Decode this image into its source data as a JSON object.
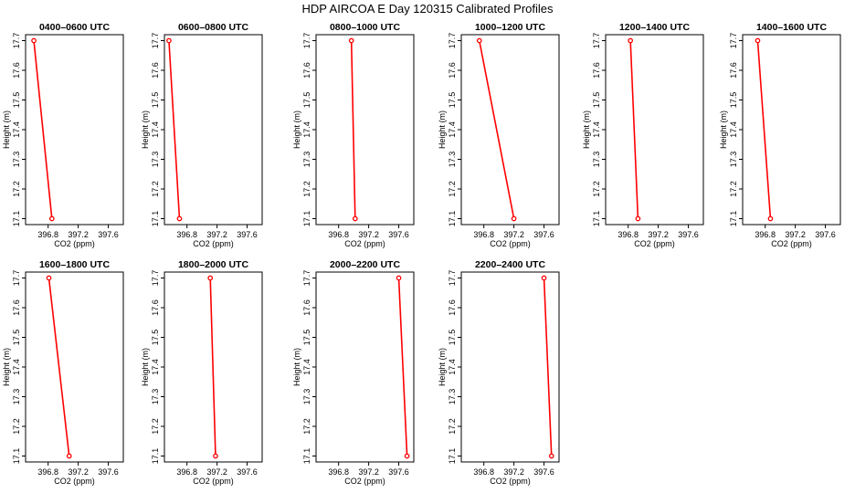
{
  "figure": {
    "title": "HDP AIRCOA E  Day 120315  Calibrated Profiles"
  },
  "style": {
    "line_color": "#ff0000",
    "point_color": "#ff0000",
    "axis_color": "#000000"
  },
  "chart_data": [
    {
      "type": "line",
      "title": "0400–0600 UTC",
      "xlabel": "CO2 (ppm)",
      "ylabel": "Height (m)",
      "xlim": [
        396.5,
        397.8
      ],
      "ylim": [
        17.08,
        17.72
      ],
      "xticks": [
        "396.8",
        "397.2",
        "397.6"
      ],
      "yticks": [
        "17.1",
        "17.2",
        "17.3",
        "17.4",
        "17.5",
        "17.6",
        "17.7"
      ],
      "series": [
        {
          "x": [
            396.61,
            396.85
          ],
          "y": [
            17.7,
            17.1
          ]
        }
      ]
    },
    {
      "type": "line",
      "title": "0600–0800 UTC",
      "xlabel": "CO2 (ppm)",
      "ylabel": "Height (m)",
      "xlim": [
        396.5,
        397.8
      ],
      "ylim": [
        17.08,
        17.72
      ],
      "xticks": [
        "396.8",
        "397.2",
        "397.6"
      ],
      "yticks": [
        "17.1",
        "17.2",
        "17.3",
        "17.4",
        "17.5",
        "17.6",
        "17.7"
      ],
      "series": [
        {
          "x": [
            396.56,
            396.7
          ],
          "y": [
            17.7,
            17.1
          ]
        }
      ]
    },
    {
      "type": "line",
      "title": "0800–1000 UTC",
      "xlabel": "CO2 (ppm)",
      "ylabel": "Height (m)",
      "xlim": [
        396.5,
        397.8
      ],
      "ylim": [
        17.08,
        17.72
      ],
      "xticks": [
        "396.8",
        "397.2",
        "397.6"
      ],
      "yticks": [
        "17.1",
        "17.2",
        "17.3",
        "17.4",
        "17.5",
        "17.6",
        "17.7"
      ],
      "series": [
        {
          "x": [
            396.97,
            397.02
          ],
          "y": [
            17.7,
            17.1
          ]
        }
      ]
    },
    {
      "type": "line",
      "title": "1000–1200 UTC",
      "xlabel": "CO2 (ppm)",
      "ylabel": "Height (m)",
      "xlim": [
        396.5,
        397.8
      ],
      "ylim": [
        17.08,
        17.72
      ],
      "xticks": [
        "396.8",
        "397.2",
        "397.6"
      ],
      "yticks": [
        "17.1",
        "17.2",
        "17.3",
        "17.4",
        "17.5",
        "17.6",
        "17.7"
      ],
      "series": [
        {
          "x": [
            396.74,
            397.2
          ],
          "y": [
            17.7,
            17.1
          ]
        }
      ]
    },
    {
      "type": "line",
      "title": "1200–1400 UTC",
      "xlabel": "CO2 (ppm)",
      "ylabel": "Height (m)",
      "xlim": [
        396.5,
        397.8
      ],
      "ylim": [
        17.08,
        17.72
      ],
      "xticks": [
        "396.8",
        "397.2",
        "397.6"
      ],
      "yticks": [
        "17.1",
        "17.2",
        "17.3",
        "17.4",
        "17.5",
        "17.6",
        "17.7"
      ],
      "series": [
        {
          "x": [
            396.83,
            396.93
          ],
          "y": [
            17.7,
            17.1
          ]
        }
      ]
    },
    {
      "type": "line",
      "title": "1400–1600 UTC",
      "xlabel": "CO2 (ppm)",
      "ylabel": "Height (m)",
      "xlim": [
        396.5,
        397.8
      ],
      "ylim": [
        17.08,
        17.72
      ],
      "xticks": [
        "396.8",
        "397.2",
        "397.6"
      ],
      "yticks": [
        "17.1",
        "17.2",
        "17.3",
        "17.4",
        "17.5",
        "17.6",
        "17.7"
      ],
      "series": [
        {
          "x": [
            396.7,
            396.87
          ],
          "y": [
            17.7,
            17.1
          ]
        }
      ]
    },
    {
      "type": "line",
      "title": "1600–1800 UTC",
      "xlabel": "CO2 (ppm)",
      "ylabel": "Height (m)",
      "xlim": [
        396.5,
        397.8
      ],
      "ylim": [
        17.08,
        17.72
      ],
      "xticks": [
        "396.8",
        "397.2",
        "397.6"
      ],
      "yticks": [
        "17.1",
        "17.2",
        "17.3",
        "17.4",
        "17.5",
        "17.6",
        "17.7"
      ],
      "series": [
        {
          "x": [
            396.81,
            397.08
          ],
          "y": [
            17.7,
            17.1
          ]
        }
      ]
    },
    {
      "type": "line",
      "title": "1800–2000 UTC",
      "xlabel": "CO2 (ppm)",
      "ylabel": "Height (m)",
      "xlim": [
        396.5,
        397.8
      ],
      "ylim": [
        17.08,
        17.72
      ],
      "xticks": [
        "396.8",
        "397.2",
        "397.6"
      ],
      "yticks": [
        "17.1",
        "17.2",
        "17.3",
        "17.4",
        "17.5",
        "17.6",
        "17.7"
      ],
      "series": [
        {
          "x": [
            397.11,
            397.18
          ],
          "y": [
            17.7,
            17.1
          ]
        }
      ]
    },
    {
      "type": "line",
      "title": "2000–2200 UTC",
      "xlabel": "CO2 (ppm)",
      "ylabel": "Height (m)",
      "xlim": [
        396.5,
        397.8
      ],
      "ylim": [
        17.08,
        17.72
      ],
      "xticks": [
        "396.8",
        "397.2",
        "397.6"
      ],
      "yticks": [
        "17.1",
        "17.2",
        "17.3",
        "17.4",
        "17.5",
        "17.6",
        "17.7"
      ],
      "series": [
        {
          "x": [
            397.6,
            397.71
          ],
          "y": [
            17.7,
            17.1
          ]
        }
      ]
    },
    {
      "type": "line",
      "title": "2200–2400 UTC",
      "xlabel": "CO2 (ppm)",
      "ylabel": "Height (m)",
      "xlim": [
        396.5,
        397.8
      ],
      "ylim": [
        17.08,
        17.72
      ],
      "xticks": [
        "396.8",
        "397.2",
        "397.6"
      ],
      "yticks": [
        "17.1",
        "17.2",
        "17.3",
        "17.4",
        "17.5",
        "17.6",
        "17.7"
      ],
      "series": [
        {
          "x": [
            397.6,
            397.7
          ],
          "y": [
            17.7,
            17.1
          ]
        }
      ]
    }
  ]
}
